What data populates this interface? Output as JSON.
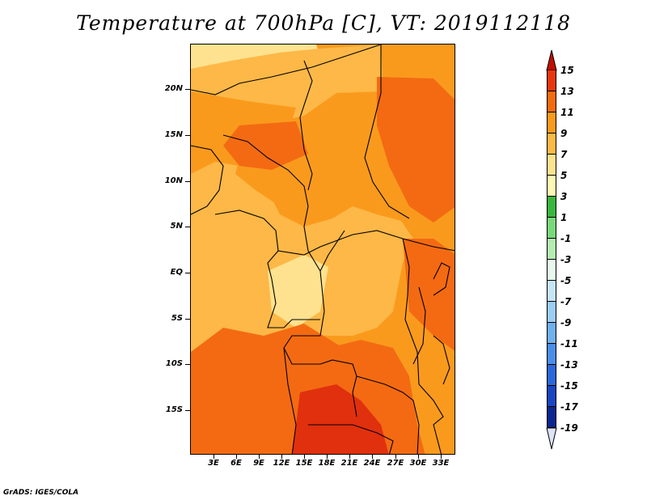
{
  "title": "Temperature at 700hPa [C], VT: 2019112118",
  "footer": "GrADS: IGES/COLA",
  "map": {
    "y_ticks": [
      "20N",
      "15N",
      "10N",
      "5N",
      "EQ",
      "5S",
      "10S",
      "15S"
    ],
    "x_ticks": [
      "3E",
      "6E",
      "9E",
      "12E",
      "15E",
      "18E",
      "21E",
      "24E",
      "27E",
      "30E",
      "33E"
    ],
    "colors": {
      "c5_7": "#fee28f",
      "c7_9": "#fdb847",
      "c9_11": "#fa9a1d",
      "c11_13": "#f36a12",
      "c13_15": "#e0300e",
      "border": "#000000"
    }
  },
  "colorbar": {
    "labels": [
      "15",
      "13",
      "11",
      "9",
      "7",
      "5",
      "3",
      "1",
      "-1",
      "-3",
      "-5",
      "-7",
      "-9",
      "-11",
      "-13",
      "-15",
      "-17",
      "-19"
    ],
    "colors": [
      "#c00f00",
      "#e8360b",
      "#f46b0e",
      "#fa9a1d",
      "#fdb847",
      "#fee28f",
      "#fef8b5",
      "#3ab53e",
      "#7ad87a",
      "#b5ecb1",
      "#e6f8ef",
      "#c7e5f9",
      "#9ccdf5",
      "#6fb0ef",
      "#4b8ee8",
      "#2c67da",
      "#1845c0",
      "#0a2690",
      "#07106b",
      "#dde3f7"
    ]
  }
}
